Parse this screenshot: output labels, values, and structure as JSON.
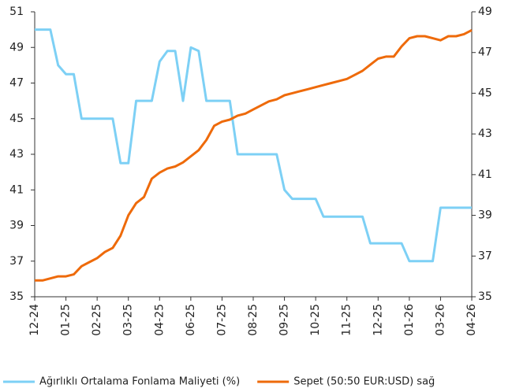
{
  "chart_data": {
    "type": "line",
    "categories": [
      "12-24",
      null,
      null,
      null,
      "01-25",
      null,
      null,
      null,
      "02-25",
      null,
      null,
      null,
      "03-25",
      null,
      null,
      null,
      "04-25",
      null,
      null,
      null,
      "06-25",
      null,
      null,
      null,
      "07-25",
      null,
      null,
      null,
      "08-25",
      null,
      null,
      null,
      "09-25",
      null,
      null,
      null,
      "10-25",
      null,
      null,
      null,
      "11-25",
      null,
      null,
      null,
      "12-25",
      null,
      null,
      null,
      "01-26",
      null,
      null,
      null,
      "03-26",
      null,
      null,
      null,
      "04-26"
    ],
    "series": [
      {
        "name": "Ağırlıklı Ortalama Fonlama Maliyeti (%)",
        "color": "#7dd0f5",
        "values": [
          50,
          50,
          50,
          48,
          47.5,
          47.5,
          45,
          45,
          45,
          45,
          45,
          42.5,
          42.5,
          46,
          46,
          46,
          48.2,
          48.8,
          48.8,
          46,
          49,
          48.8,
          46,
          46,
          46,
          46,
          43,
          43,
          43,
          43,
          43,
          43,
          41,
          40.5,
          40.5,
          40.5,
          40.5,
          39.5,
          39.5,
          39.5,
          39.5,
          39.5,
          39.5,
          38,
          38,
          38,
          38,
          38,
          37,
          37,
          37,
          37,
          40,
          40,
          40,
          40,
          40
        ]
      },
      {
        "name": "Sepet (50:50 EUR:USD) sağ",
        "color": "#ee6a0a",
        "axis": "y2",
        "values": [
          35.8,
          35.8,
          35.9,
          36.0,
          36.0,
          36.1,
          36.5,
          36.7,
          36.9,
          37.2,
          37.4,
          38.0,
          39.0,
          39.6,
          39.9,
          40.8,
          41.1,
          41.3,
          41.4,
          41.6,
          41.9,
          42.2,
          42.7,
          43.4,
          43.6,
          43.7,
          43.9,
          44.0,
          44.2,
          44.4,
          44.6,
          44.7,
          44.9,
          45.0,
          45.1,
          45.2,
          45.3,
          45.4,
          45.5,
          45.6,
          45.7,
          45.9,
          46.1,
          46.4,
          46.7,
          46.8,
          46.8,
          47.3,
          47.7,
          47.8,
          47.8,
          47.7,
          47.6,
          47.8,
          47.8,
          47.9,
          48.1
        ]
      }
    ],
    "ylim": [
      35,
      51
    ],
    "yticks": [
      35,
      37,
      39,
      41,
      43,
      45,
      47,
      49,
      51
    ],
    "y2lim": [
      35,
      49
    ],
    "y2ticks": [
      35,
      37,
      39,
      41,
      43,
      45,
      47,
      49
    ],
    "grid": false,
    "legend": "bottom"
  }
}
